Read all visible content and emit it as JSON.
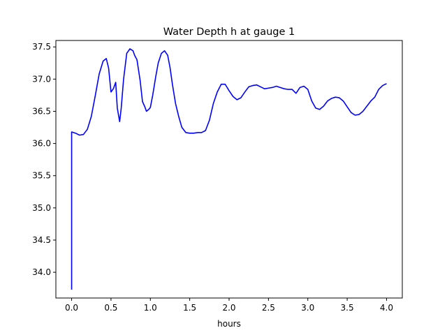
{
  "chart_data": {
    "type": "line",
    "title": "Water Depth h at gauge 1",
    "xlabel": "hours",
    "ylabel": "",
    "xlim": [
      -0.2,
      4.2
    ],
    "ylim": [
      33.6,
      37.6
    ],
    "xticks": [
      0.0,
      0.5,
      1.0,
      1.5,
      2.0,
      2.5,
      3.0,
      3.5,
      4.0
    ],
    "xtick_labels": [
      "0.0",
      "0.5",
      "1.0",
      "1.5",
      "2.0",
      "2.5",
      "3.0",
      "3.5",
      "4.0"
    ],
    "yticks": [
      34.0,
      34.5,
      35.0,
      35.5,
      36.0,
      36.5,
      37.0,
      37.5
    ],
    "ytick_labels": [
      "34.0",
      "34.5",
      "35.0",
      "35.5",
      "36.0",
      "36.5",
      "37.0",
      "37.5"
    ],
    "grid": false,
    "series": [
      {
        "color": "#0000ff",
        "x": [
          0.0,
          0.0,
          0.05,
          0.1,
          0.15,
          0.2,
          0.25,
          0.3,
          0.35,
          0.4,
          0.44,
          0.47,
          0.5,
          0.53,
          0.56,
          0.58,
          0.61,
          0.63,
          0.66,
          0.7,
          0.74,
          0.78,
          0.8,
          0.83,
          0.87,
          0.9,
          0.93,
          0.95,
          0.98,
          1.0,
          1.03,
          1.07,
          1.1,
          1.14,
          1.18,
          1.22,
          1.25,
          1.28,
          1.32,
          1.36,
          1.4,
          1.45,
          1.5,
          1.55,
          1.6,
          1.65,
          1.7,
          1.75,
          1.8,
          1.85,
          1.9,
          1.95,
          2.0,
          2.05,
          2.1,
          2.15,
          2.2,
          2.25,
          2.3,
          2.35,
          2.4,
          2.45,
          2.5,
          2.55,
          2.6,
          2.65,
          2.7,
          2.75,
          2.8,
          2.85,
          2.9,
          2.95,
          3.0,
          3.05,
          3.1,
          3.15,
          3.2,
          3.25,
          3.3,
          3.35,
          3.4,
          3.45,
          3.5,
          3.55,
          3.6,
          3.65,
          3.7,
          3.75,
          3.8,
          3.85,
          3.9,
          3.95,
          4.0
        ],
        "y": [
          33.73,
          36.18,
          36.16,
          36.13,
          36.14,
          36.22,
          36.42,
          36.74,
          37.08,
          37.28,
          37.32,
          37.17,
          36.8,
          36.85,
          36.95,
          36.55,
          36.34,
          36.55,
          37.0,
          37.4,
          37.47,
          37.44,
          37.37,
          37.3,
          36.98,
          36.65,
          36.57,
          36.5,
          36.53,
          36.56,
          36.75,
          37.05,
          37.25,
          37.4,
          37.44,
          37.37,
          37.18,
          36.92,
          36.62,
          36.42,
          36.25,
          36.17,
          36.16,
          36.16,
          36.17,
          36.17,
          36.2,
          36.36,
          36.62,
          36.8,
          36.92,
          36.92,
          36.82,
          36.73,
          36.68,
          36.71,
          36.8,
          36.88,
          36.9,
          36.91,
          36.88,
          36.85,
          36.86,
          36.87,
          36.89,
          36.87,
          36.85,
          36.84,
          36.84,
          36.78,
          36.87,
          36.89,
          36.84,
          36.66,
          36.55,
          36.53,
          36.58,
          36.66,
          36.7,
          36.72,
          36.71,
          36.66,
          36.57,
          36.48,
          36.44,
          36.45,
          36.5,
          36.58,
          36.66,
          36.72,
          36.84,
          36.9,
          36.93
        ]
      }
    ]
  }
}
